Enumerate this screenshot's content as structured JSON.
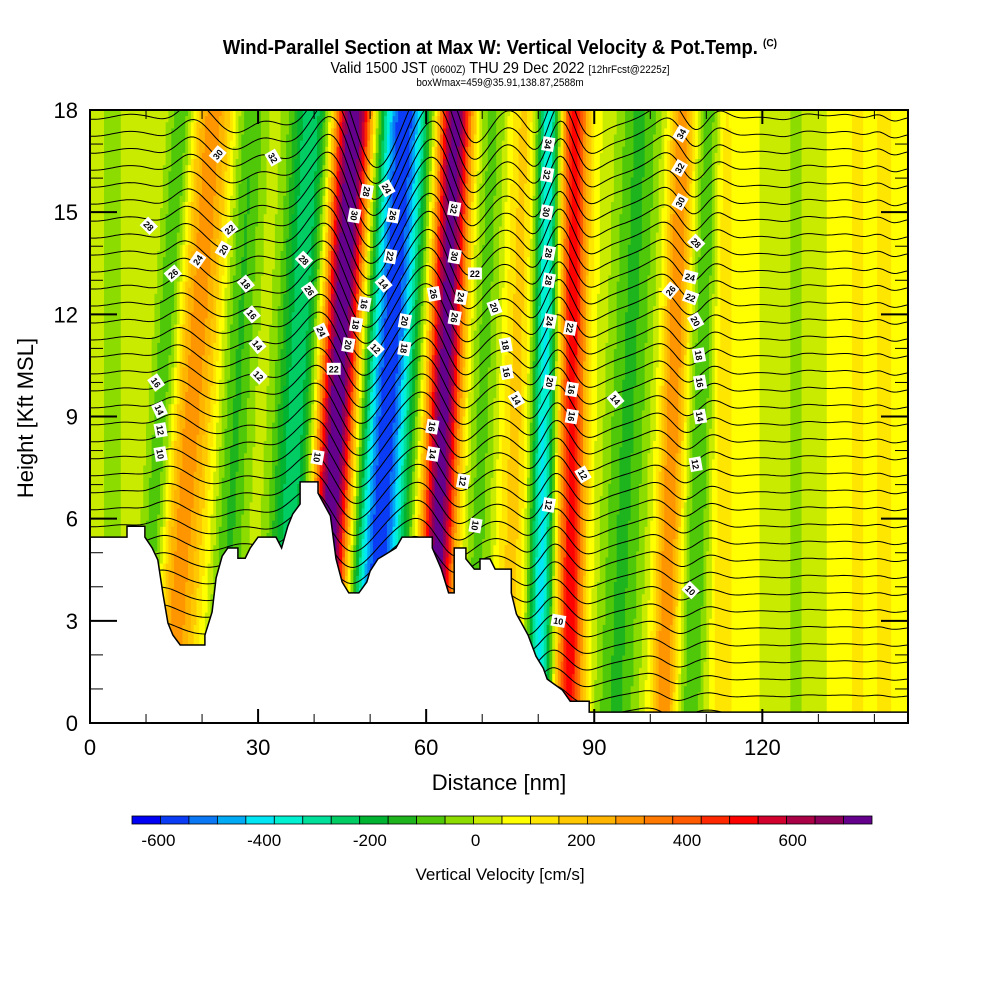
{
  "header": {
    "title": "Wind-Parallel Section at Max W: Vertical Velocity & Pot.Temp.",
    "copyright": "(C)",
    "valid_prefix": "Valid 1500 JST",
    "valid_utc": "(0600Z)",
    "valid_date": "THU 29 Dec 2022",
    "forecast_info": "[12hrFcst@2225z]",
    "box_info": "boxWmax=459@35.91,138.87,2588m"
  },
  "chart_data": {
    "type": "heatmap",
    "title": "Wind-Parallel Section at Max W: Vertical Velocity & Pot.Temp.",
    "xlabel": "Distance [nm]",
    "ylabel": "Height [Kft MSL]",
    "xlim": [
      0,
      146
    ],
    "ylim": [
      0,
      18
    ],
    "xticks": [
      "0",
      "30",
      "60",
      "90",
      "120"
    ],
    "xtick_values": [
      0,
      30,
      60,
      90,
      120
    ],
    "yticks": [
      "0",
      "3",
      "6",
      "9",
      "12",
      "15",
      "18"
    ],
    "ytick_values": [
      0,
      3,
      6,
      9,
      12,
      15,
      18
    ],
    "shading_variable": "Vertical Velocity [cm/s]",
    "contour_variable": "Potential Temperature (deg C, contour interval 2)",
    "velocity_bands": [
      {
        "distance_nm": 4,
        "peak_cm_s": -60,
        "width_nm": 3,
        "tilt_nm_per_kft": 0.0
      },
      {
        "distance_nm": 13,
        "peak_cm_s": -170,
        "width_nm": 2.5,
        "tilt_nm_per_kft": 0.4
      },
      {
        "distance_nm": 18,
        "peak_cm_s": 230,
        "width_nm": 4,
        "tilt_nm_per_kft": 0.45
      },
      {
        "distance_nm": 26,
        "peak_cm_s": -160,
        "width_nm": 3,
        "tilt_nm_per_kft": 0.3
      },
      {
        "distance_nm": 37,
        "peak_cm_s": -300,
        "width_nm": 4,
        "tilt_nm_per_kft": 0.3
      },
      {
        "distance_nm": 44,
        "peak_cm_s": 700,
        "width_nm": 3.5,
        "tilt_nm_per_kft": 0.35
      },
      {
        "distance_nm": 53,
        "peak_cm_s": -600,
        "width_nm": 4.5,
        "tilt_nm_per_kft": 0.35
      },
      {
        "distance_nm": 63,
        "peak_cm_s": 650,
        "width_nm": 3,
        "tilt_nm_per_kft": 0.25
      },
      {
        "distance_nm": 70,
        "peak_cm_s": -120,
        "width_nm": 3,
        "tilt_nm_per_kft": 0.2
      },
      {
        "distance_nm": 76,
        "peak_cm_s": 120,
        "width_nm": 3,
        "tilt_nm_per_kft": 0.2
      },
      {
        "distance_nm": 81,
        "peak_cm_s": -420,
        "width_nm": 2.2,
        "tilt_nm_per_kft": 0.1
      },
      {
        "distance_nm": 86,
        "peak_cm_s": 430,
        "width_nm": 2.5,
        "tilt_nm_per_kft": 0.05
      },
      {
        "distance_nm": 96,
        "peak_cm_s": -160,
        "width_nm": 4,
        "tilt_nm_per_kft": 0.25
      },
      {
        "distance_nm": 104,
        "peak_cm_s": 250,
        "width_nm": 2.2,
        "tilt_nm_per_kft": 0.2
      },
      {
        "distance_nm": 109,
        "peak_cm_s": -150,
        "width_nm": 2.2,
        "tilt_nm_per_kft": 0.2
      },
      {
        "distance_nm": 113,
        "peak_cm_s": 90,
        "width_nm": 2,
        "tilt_nm_per_kft": 0.0
      },
      {
        "distance_nm": 126,
        "peak_cm_s": -70,
        "width_nm": 2,
        "tilt_nm_per_kft": 0.0
      },
      {
        "distance_nm": 137,
        "peak_cm_s": 60,
        "width_nm": 2,
        "tilt_nm_per_kft": 0.0
      },
      {
        "distance_nm": 142,
        "peak_cm_s": 100,
        "width_nm": 1.5,
        "tilt_nm_per_kft": 0.0
      }
    ],
    "terrain_profile": [
      [
        0,
        5.46
      ],
      [
        6.6,
        5.46
      ],
      [
        6.6,
        5.78
      ],
      [
        9.8,
        5.78
      ],
      [
        9.8,
        5.46
      ],
      [
        11.1,
        5.14
      ],
      [
        12.1,
        4.79
      ],
      [
        13.0,
        3.82
      ],
      [
        13.9,
        2.94
      ],
      [
        14.8,
        2.58
      ],
      [
        16.1,
        2.29
      ],
      [
        20.5,
        2.29
      ],
      [
        20.5,
        2.58
      ],
      [
        21.8,
        3.26
      ],
      [
        22.5,
        4.26
      ],
      [
        23.6,
        4.9
      ],
      [
        24.6,
        5.14
      ],
      [
        26.4,
        5.14
      ],
      [
        26.4,
        4.84
      ],
      [
        27.7,
        4.84
      ],
      [
        28.6,
        5.14
      ],
      [
        30.0,
        5.46
      ],
      [
        33.2,
        5.46
      ],
      [
        34.2,
        5.14
      ],
      [
        35.3,
        5.78
      ],
      [
        36.2,
        6.14
      ],
      [
        37.5,
        6.43
      ],
      [
        37.5,
        7.08
      ],
      [
        40.7,
        7.08
      ],
      [
        40.7,
        6.75
      ],
      [
        42.9,
        6.08
      ],
      [
        43.9,
        4.82
      ],
      [
        45.0,
        4.14
      ],
      [
        46.2,
        3.82
      ],
      [
        48.0,
        3.82
      ],
      [
        49.4,
        4.14
      ],
      [
        50.0,
        4.46
      ],
      [
        51.4,
        4.82
      ],
      [
        54.6,
        5.14
      ],
      [
        55.7,
        5.46
      ],
      [
        61.1,
        5.46
      ],
      [
        61.1,
        5.14
      ],
      [
        62.7,
        4.52
      ],
      [
        64.0,
        3.82
      ],
      [
        65.0,
        3.82
      ],
      [
        65.0,
        5.14
      ],
      [
        67.1,
        5.14
      ],
      [
        67.1,
        4.82
      ],
      [
        68.6,
        4.52
      ],
      [
        69.6,
        4.52
      ],
      [
        69.6,
        4.82
      ],
      [
        71.4,
        4.82
      ],
      [
        72.3,
        4.52
      ],
      [
        75.2,
        4.52
      ],
      [
        75.2,
        3.82
      ],
      [
        76.1,
        3.2
      ],
      [
        77.0,
        2.94
      ],
      [
        78.2,
        2.58
      ],
      [
        79.6,
        1.96
      ],
      [
        80.9,
        1.61
      ],
      [
        81.6,
        1.29
      ],
      [
        84.3,
        0.97
      ],
      [
        85.7,
        0.64
      ],
      [
        89.1,
        0.64
      ],
      [
        89.1,
        0.32
      ],
      [
        96.3,
        0.32
      ],
      [
        146,
        0.32
      ]
    ],
    "isentrope_labels": [
      {
        "value": "30",
        "d": 22.8,
        "h": 16.7,
        "rot": -50
      },
      {
        "value": "32",
        "d": 32.7,
        "h": 16.6,
        "rot": 60
      },
      {
        "value": "28",
        "d": 10.5,
        "h": 14.6,
        "rot": 45
      },
      {
        "value": "26",
        "d": 14.8,
        "h": 13.2,
        "rot": -40
      },
      {
        "value": "24",
        "d": 19.2,
        "h": 13.6,
        "rot": -55
      },
      {
        "value": "22",
        "d": 24.9,
        "h": 14.5,
        "rot": -40
      },
      {
        "value": "20",
        "d": 23.8,
        "h": 13.9,
        "rot": -60
      },
      {
        "value": "18",
        "d": 27.8,
        "h": 12.9,
        "rot": 50
      },
      {
        "value": "16",
        "d": 28.9,
        "h": 12.0,
        "rot": 50
      },
      {
        "value": "14",
        "d": 29.9,
        "h": 11.1,
        "rot": 50
      },
      {
        "value": "12",
        "d": 30.1,
        "h": 10.2,
        "rot": 45
      },
      {
        "value": "16",
        "d": 11.8,
        "h": 10.0,
        "rot": 55
      },
      {
        "value": "14",
        "d": 12.4,
        "h": 9.2,
        "rot": 65
      },
      {
        "value": "12",
        "d": 12.6,
        "h": 8.6,
        "rot": 80
      },
      {
        "value": "10",
        "d": 12.6,
        "h": 7.9,
        "rot": 80
      },
      {
        "value": "28",
        "d": 38.2,
        "h": 13.6,
        "rot": 45
      },
      {
        "value": "26",
        "d": 39.2,
        "h": 12.7,
        "rot": 55
      },
      {
        "value": "24",
        "d": 41.3,
        "h": 11.5,
        "rot": 65
      },
      {
        "value": "22",
        "d": 43.5,
        "h": 10.4,
        "rot": 0
      },
      {
        "value": "10",
        "d": 40.6,
        "h": 7.8,
        "rot": 100
      },
      {
        "value": "28",
        "d": 49.4,
        "h": 15.6,
        "rot": 100
      },
      {
        "value": "30",
        "d": 47.2,
        "h": 14.9,
        "rot": 100
      },
      {
        "value": "24",
        "d": 53.0,
        "h": 15.7,
        "rot": 60
      },
      {
        "value": "26",
        "d": 54.1,
        "h": 14.9,
        "rot": 100
      },
      {
        "value": "22",
        "d": 53.6,
        "h": 13.7,
        "rot": 100
      },
      {
        "value": "14",
        "d": 52.4,
        "h": 12.9,
        "rot": 50
      },
      {
        "value": "16",
        "d": 49.0,
        "h": 12.3,
        "rot": 100
      },
      {
        "value": "18",
        "d": 47.5,
        "h": 11.7,
        "rot": 100
      },
      {
        "value": "20",
        "d": 46.1,
        "h": 11.1,
        "rot": 100
      },
      {
        "value": "12",
        "d": 51.0,
        "h": 11.0,
        "rot": 45
      },
      {
        "value": "20",
        "d": 56.2,
        "h": 11.8,
        "rot": 100
      },
      {
        "value": "18",
        "d": 56.1,
        "h": 11.0,
        "rot": 100
      },
      {
        "value": "26",
        "d": 61.4,
        "h": 12.6,
        "rot": 80
      },
      {
        "value": "32",
        "d": 65.0,
        "h": 15.1,
        "rot": 100
      },
      {
        "value": "30",
        "d": 65.1,
        "h": 13.7,
        "rot": 100
      },
      {
        "value": "24",
        "d": 66.2,
        "h": 12.5,
        "rot": 100
      },
      {
        "value": "26",
        "d": 65.1,
        "h": 11.9,
        "rot": 100
      },
      {
        "value": "22",
        "d": 68.7,
        "h": 13.2,
        "rot": 0
      },
      {
        "value": "20",
        "d": 72.2,
        "h": 12.2,
        "rot": 70
      },
      {
        "value": "18",
        "d": 74.2,
        "h": 11.1,
        "rot": 80
      },
      {
        "value": "16",
        "d": 74.4,
        "h": 10.3,
        "rot": 80
      },
      {
        "value": "14",
        "d": 76.1,
        "h": 9.5,
        "rot": 60
      },
      {
        "value": "16",
        "d": 61.1,
        "h": 8.7,
        "rot": 100
      },
      {
        "value": "14",
        "d": 61.2,
        "h": 7.9,
        "rot": 100
      },
      {
        "value": "12",
        "d": 66.6,
        "h": 7.1,
        "rot": 100
      },
      {
        "value": "10",
        "d": 68.8,
        "h": 5.8,
        "rot": 100
      },
      {
        "value": "34",
        "d": 81.8,
        "h": 17.0,
        "rot": 100
      },
      {
        "value": "32",
        "d": 81.6,
        "h": 16.1,
        "rot": 100
      },
      {
        "value": "30",
        "d": 81.5,
        "h": 15.0,
        "rot": 100
      },
      {
        "value": "28",
        "d": 81.9,
        "h": 13.8,
        "rot": 100
      },
      {
        "value": "28",
        "d": 81.9,
        "h": 13.0,
        "rot": 100
      },
      {
        "value": "24",
        "d": 82.1,
        "h": 11.8,
        "rot": 100
      },
      {
        "value": "20",
        "d": 82.1,
        "h": 10.0,
        "rot": 100
      },
      {
        "value": "22",
        "d": 85.7,
        "h": 11.6,
        "rot": 100
      },
      {
        "value": "16",
        "d": 86.0,
        "h": 9.8,
        "rot": 100
      },
      {
        "value": "16",
        "d": 86.0,
        "h": 9.0,
        "rot": 100
      },
      {
        "value": "12",
        "d": 81.9,
        "h": 6.4,
        "rot": 100
      },
      {
        "value": "12",
        "d": 88.0,
        "h": 7.3,
        "rot": 60
      },
      {
        "value": "14",
        "d": 93.8,
        "h": 9.5,
        "rot": 50
      },
      {
        "value": "10",
        "d": 83.6,
        "h": 3.0,
        "rot": 10
      },
      {
        "value": "34",
        "d": 105.5,
        "h": 17.3,
        "rot": -60
      },
      {
        "value": "32",
        "d": 105.2,
        "h": 16.3,
        "rot": -60
      },
      {
        "value": "30",
        "d": 105.3,
        "h": 15.3,
        "rot": -60
      },
      {
        "value": "28",
        "d": 108.2,
        "h": 14.1,
        "rot": 45
      },
      {
        "value": "26",
        "d": 103.6,
        "h": 12.7,
        "rot": -50
      },
      {
        "value": "24",
        "d": 107.1,
        "h": 13.1,
        "rot": 15
      },
      {
        "value": "22",
        "d": 107.2,
        "h": 12.5,
        "rot": 20
      },
      {
        "value": "20",
        "d": 108.1,
        "h": 11.8,
        "rot": 60
      },
      {
        "value": "18",
        "d": 108.7,
        "h": 10.8,
        "rot": 80
      },
      {
        "value": "16",
        "d": 108.9,
        "h": 10.0,
        "rot": 80
      },
      {
        "value": "14",
        "d": 108.9,
        "h": 9.0,
        "rot": 80
      },
      {
        "value": "12",
        "d": 108.1,
        "h": 7.6,
        "rot": 80
      },
      {
        "value": "10",
        "d": 107.2,
        "h": 3.9,
        "rot": 45
      }
    ],
    "colorbar": {
      "label": "Vertical Velocity [cm/s]",
      "tick_labels": [
        "-600",
        "-400",
        "-200",
        "0",
        "200",
        "400",
        "600"
      ],
      "tick_values": [
        -600,
        -400,
        -200,
        0,
        200,
        400,
        600
      ],
      "bounds": [
        -650,
        750
      ],
      "step": 50,
      "colors": [
        "#0000f5",
        "#0a3cf5",
        "#0a78f5",
        "#00aaf5",
        "#00e6f5",
        "#00f0d2",
        "#00e09a",
        "#00cc64",
        "#00b432",
        "#1eb41e",
        "#50c80a",
        "#8cdc00",
        "#c8eb00",
        "#ffff00",
        "#ffe600",
        "#ffc800",
        "#ffb400",
        "#ff9600",
        "#ff7800",
        "#ff5a00",
        "#ff2800",
        "#ff0000",
        "#d2002d",
        "#aa0046",
        "#8c005a",
        "#64008c"
      ]
    }
  }
}
